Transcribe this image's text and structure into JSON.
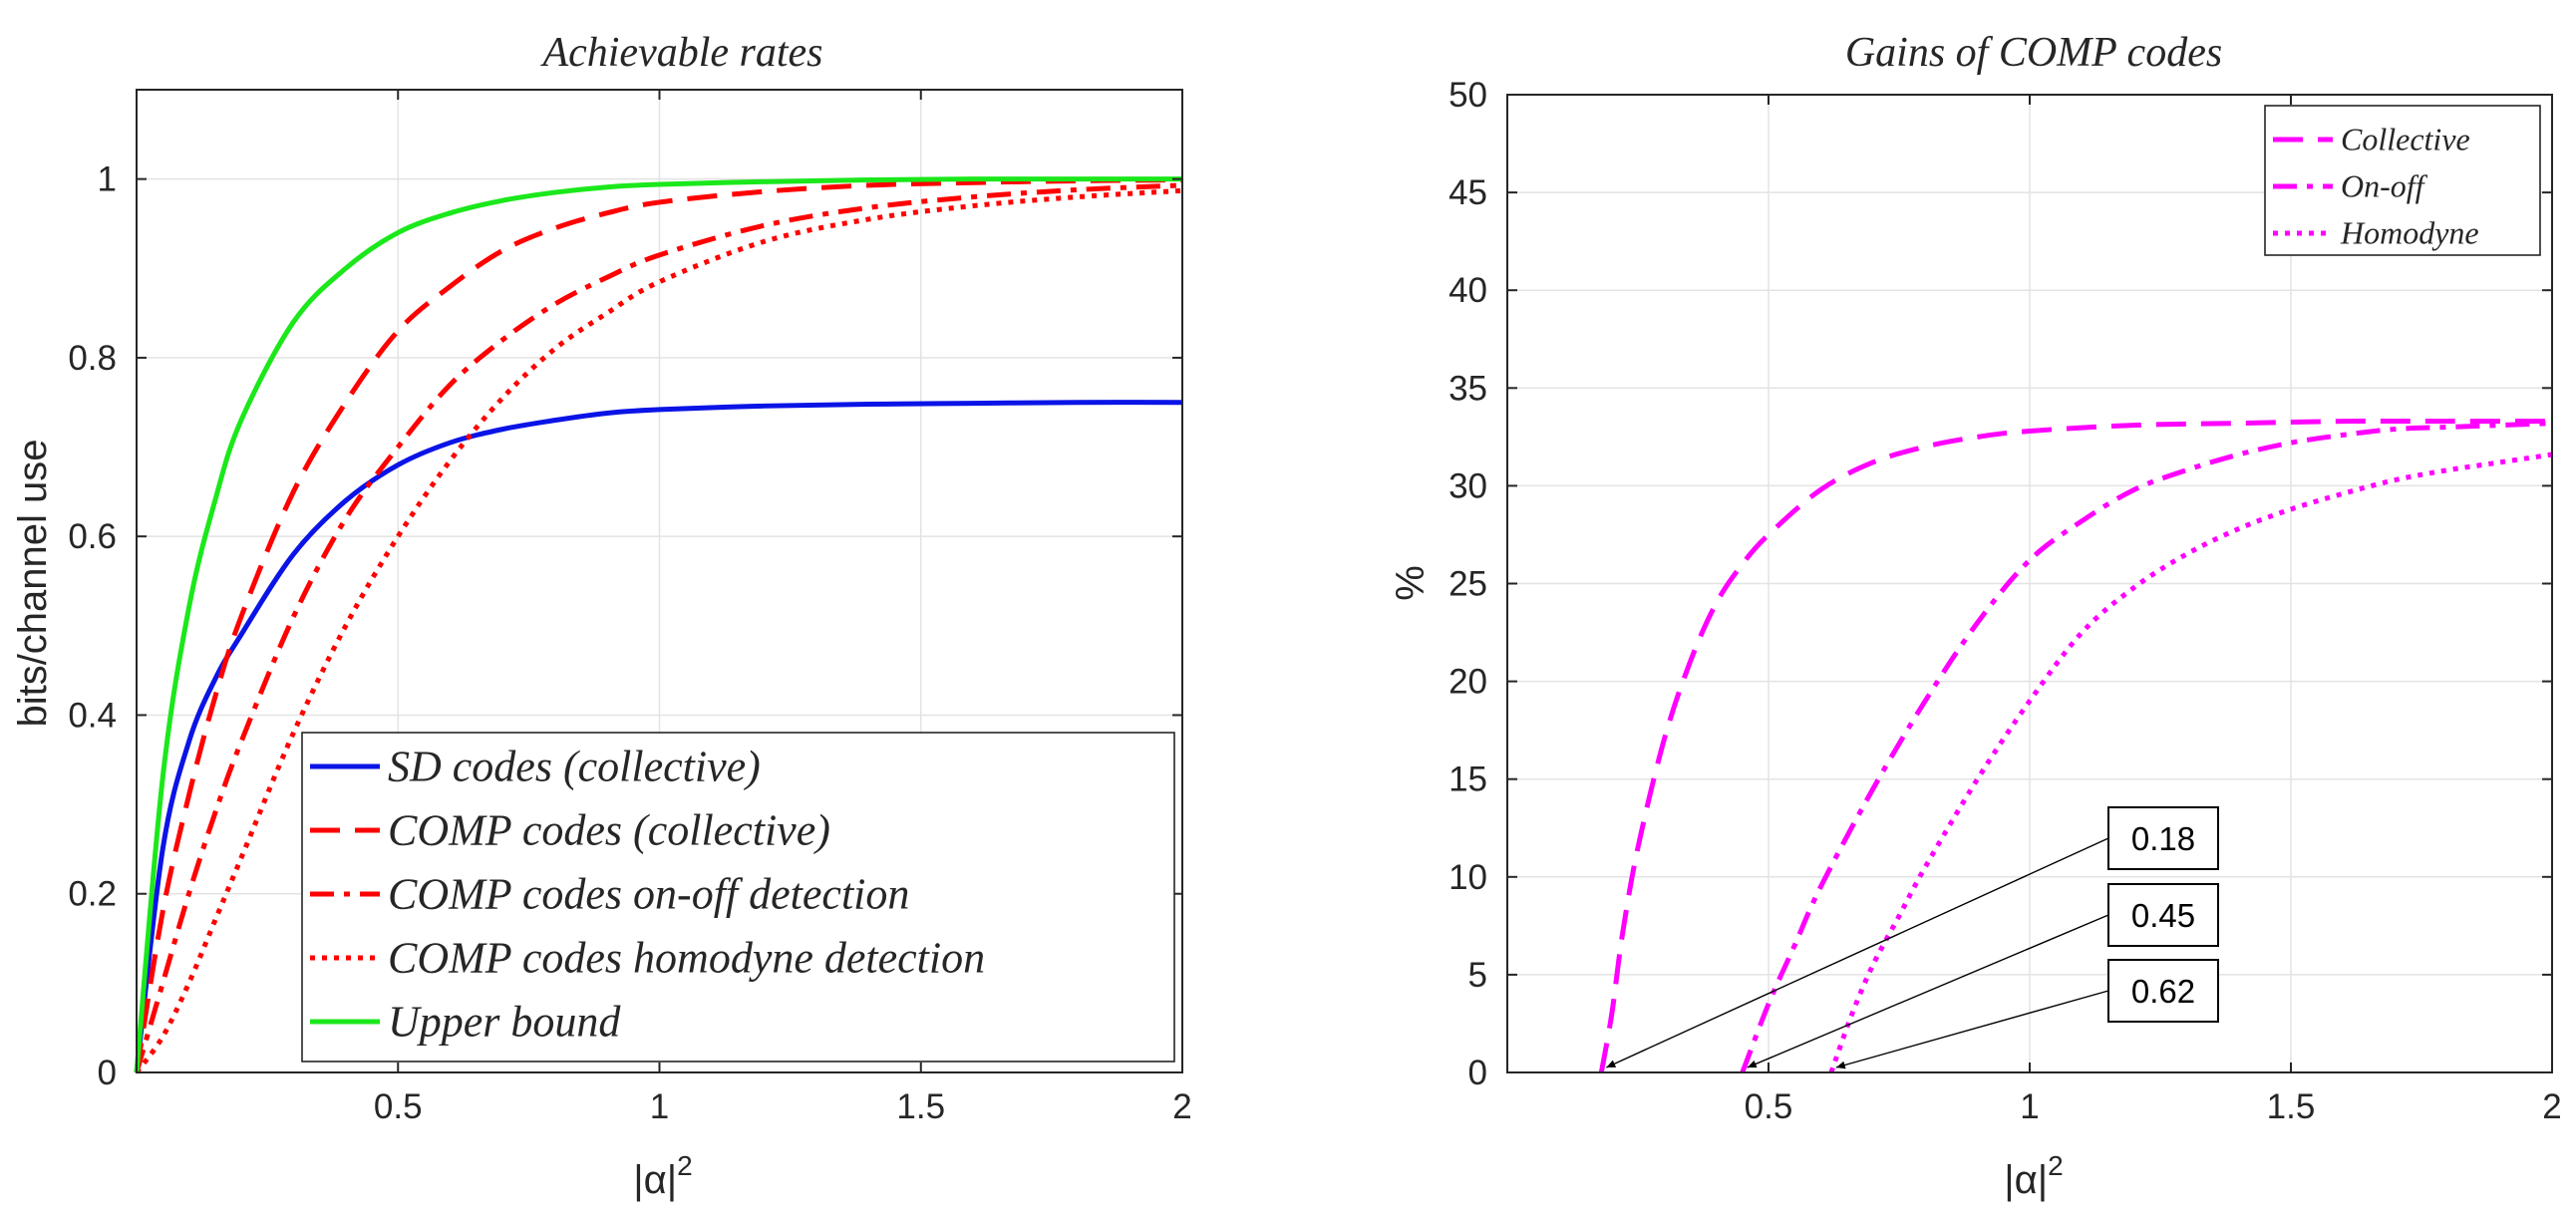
{
  "chart_data": [
    {
      "type": "line",
      "title": "Achievable rates",
      "xlabel": "|α|",
      "xlabel_exp": "2",
      "ylabel": "bits/channel use",
      "xlim": [
        0,
        2
      ],
      "ylim": [
        0,
        1.1
      ],
      "xticks": [
        0.5,
        1,
        1.5,
        2
      ],
      "xtick_labels": [
        "0.5",
        "1",
        "1.5",
        "2"
      ],
      "yticks": [
        0,
        0.2,
        0.4,
        0.6,
        0.8,
        1
      ],
      "ytick_labels": [
        "0",
        "0.2",
        "0.4",
        "0.6",
        "0.8",
        "1"
      ],
      "grid": true,
      "legend_position": "bottom-right",
      "series": [
        {
          "name": "SD codes (collective)",
          "color": "#0a14e6",
          "style": "solid",
          "x": [
            0,
            0.05,
            0.1,
            0.15,
            0.2,
            0.3,
            0.4,
            0.5,
            0.6,
            0.7,
            0.8,
            0.9,
            1,
            1.2,
            1.4,
            1.6,
            1.8,
            2
          ],
          "y": [
            0,
            0.25,
            0.37,
            0.44,
            0.49,
            0.58,
            0.64,
            0.68,
            0.705,
            0.72,
            0.73,
            0.738,
            0.742,
            0.746,
            0.748,
            0.749,
            0.75,
            0.75
          ]
        },
        {
          "name": "COMP codes (collective)",
          "color": "#ff0000",
          "style": "dashed",
          "x": [
            0,
            0.05,
            0.1,
            0.15,
            0.2,
            0.3,
            0.4,
            0.5,
            0.6,
            0.7,
            0.8,
            0.9,
            1,
            1.2,
            1.4,
            1.6,
            1.8,
            2
          ],
          "y": [
            0,
            0.18,
            0.31,
            0.42,
            0.51,
            0.65,
            0.75,
            0.83,
            0.88,
            0.92,
            0.945,
            0.962,
            0.974,
            0.986,
            0.993,
            0.996,
            0.998,
            0.999
          ]
        },
        {
          "name": "COMP codes on-off detection",
          "color": "#ff0000",
          "style": "dashdot",
          "x": [
            0,
            0.05,
            0.1,
            0.15,
            0.2,
            0.3,
            0.4,
            0.5,
            0.6,
            0.7,
            0.8,
            0.9,
            1,
            1.2,
            1.4,
            1.6,
            1.8,
            2
          ],
          "y": [
            0,
            0.1,
            0.2,
            0.29,
            0.37,
            0.51,
            0.62,
            0.7,
            0.77,
            0.82,
            0.86,
            0.89,
            0.915,
            0.948,
            0.968,
            0.98,
            0.988,
            0.993
          ]
        },
        {
          "name": "COMP codes homodyne detection",
          "color": "#ff0000",
          "style": "dotted",
          "x": [
            0,
            0.05,
            0.1,
            0.15,
            0.2,
            0.3,
            0.4,
            0.5,
            0.6,
            0.7,
            0.8,
            0.9,
            1,
            1.2,
            1.4,
            1.6,
            1.8,
            2
          ],
          "y": [
            0,
            0.04,
            0.1,
            0.17,
            0.24,
            0.38,
            0.5,
            0.6,
            0.685,
            0.755,
            0.81,
            0.85,
            0.885,
            0.93,
            0.955,
            0.97,
            0.98,
            0.987
          ]
        },
        {
          "name": "Upper bound",
          "color": "#1be81b",
          "style": "solid",
          "x": [
            0,
            0.05,
            0.1,
            0.15,
            0.2,
            0.3,
            0.4,
            0.5,
            0.6,
            0.7,
            0.8,
            0.9,
            1,
            1.2,
            1.4,
            1.6,
            1.8,
            2
          ],
          "y": [
            0,
            0.33,
            0.52,
            0.64,
            0.73,
            0.84,
            0.9,
            0.94,
            0.962,
            0.976,
            0.985,
            0.991,
            0.994,
            0.997,
            0.999,
            1,
            1,
            1
          ]
        }
      ]
    },
    {
      "type": "line",
      "title": "Gains of COMP codes",
      "xlabel": "|α|",
      "xlabel_exp": "2",
      "ylabel": "%",
      "xlim": [
        0,
        2
      ],
      "ylim": [
        0,
        50
      ],
      "xticks": [
        0.5,
        1,
        1.5,
        2
      ],
      "xtick_labels": [
        "0.5",
        "1",
        "1.5",
        "2"
      ],
      "yticks": [
        0,
        5,
        10,
        15,
        20,
        25,
        30,
        35,
        40,
        45,
        50
      ],
      "ytick_labels": [
        "0",
        "5",
        "10",
        "15",
        "20",
        "25",
        "30",
        "35",
        "40",
        "45",
        "50"
      ],
      "grid": true,
      "legend_position": "top-right",
      "series": [
        {
          "name": "Collective",
          "color": "#ff00ff",
          "style": "dashed",
          "x": [
            0.18,
            0.2,
            0.22,
            0.25,
            0.3,
            0.35,
            0.4,
            0.45,
            0.5,
            0.6,
            0.7,
            0.8,
            0.9,
            1,
            1.2,
            1.4,
            1.6,
            1.8,
            2
          ],
          "y": [
            0,
            3,
            7,
            11.5,
            17,
            21,
            24,
            26,
            27.5,
            29.8,
            31.2,
            32,
            32.5,
            32.8,
            33.1,
            33.2,
            33.3,
            33.3,
            33.3
          ]
        },
        {
          "name": "On-off",
          "color": "#ff00ff",
          "style": "dashdot",
          "x": [
            0.45,
            0.5,
            0.55,
            0.6,
            0.7,
            0.8,
            0.9,
            1,
            1.1,
            1.2,
            1.3,
            1.4,
            1.5,
            1.6,
            1.7,
            1.8,
            1.9,
            2
          ],
          "y": [
            0,
            3.5,
            6.5,
            9.5,
            14.5,
            19,
            23,
            26.2,
            28.2,
            29.8,
            30.8,
            31.6,
            32.2,
            32.6,
            32.9,
            33,
            33.1,
            33.2
          ]
        },
        {
          "name": "Homodyne",
          "color": "#ff00ff",
          "style": "dotted",
          "x": [
            0.62,
            0.66,
            0.7,
            0.75,
            0.8,
            0.9,
            1,
            1.1,
            1.2,
            1.3,
            1.4,
            1.5,
            1.6,
            1.7,
            1.8,
            1.9,
            2
          ],
          "y": [
            0,
            3,
            5.5,
            8,
            10.5,
            15,
            19,
            22.5,
            24.8,
            26.5,
            27.8,
            28.8,
            29.6,
            30.3,
            30.8,
            31.2,
            31.6
          ]
        }
      ],
      "annotations": [
        {
          "label": "0.18",
          "x": 0.18,
          "y": 0
        },
        {
          "label": "0.45",
          "x": 0.45,
          "y": 0
        },
        {
          "label": "0.62",
          "x": 0.62,
          "y": 0
        }
      ]
    }
  ]
}
